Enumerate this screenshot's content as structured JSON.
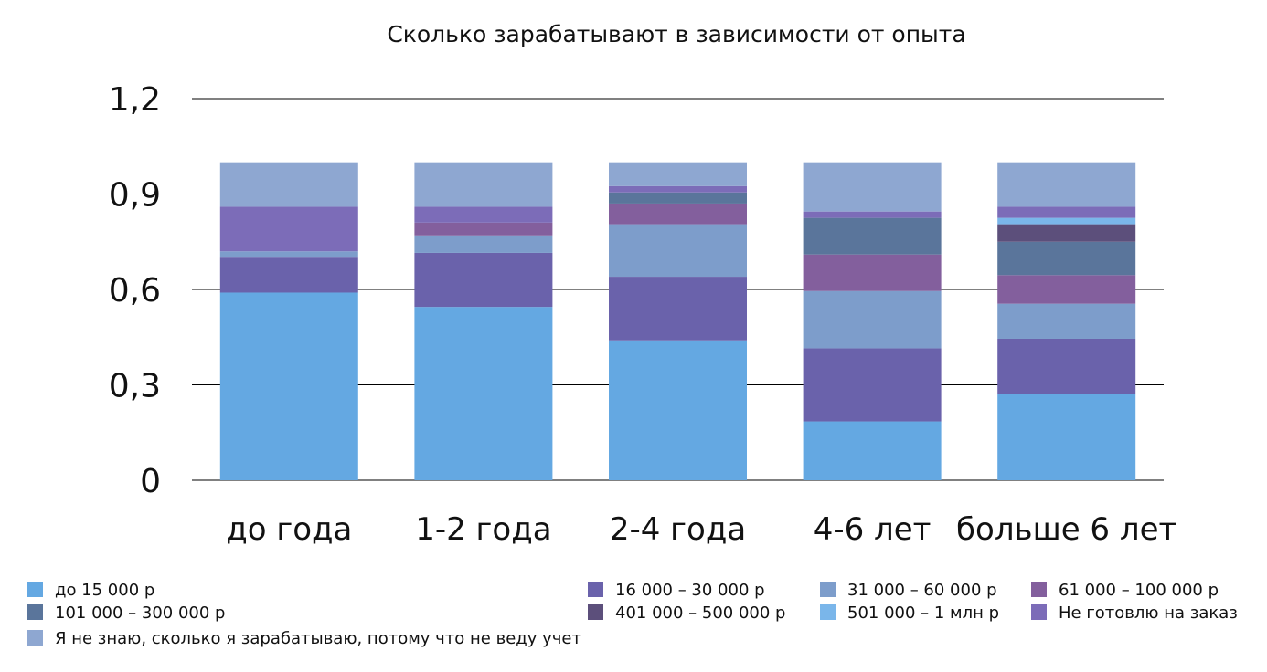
{
  "chart_data": {
    "type": "bar",
    "stacked": true,
    "title": "Сколько зарабатывают в зависимости от опыта",
    "xlabel": "",
    "ylabel": "",
    "ylim": [
      0,
      1.2
    ],
    "yticks": [
      "0",
      "0,3",
      "0,6",
      "0,9",
      "1,2"
    ],
    "ytick_values": [
      0,
      0.3,
      0.6,
      0.9,
      1.2
    ],
    "grid": true,
    "legend_position": "bottom",
    "categories": [
      "до года",
      "1-2 года",
      "2-4 года",
      "4-6 лет",
      "больше 6 лет"
    ],
    "series": [
      {
        "name": "до 15 000 р",
        "color": "#64a8e2",
        "values": [
          0.59,
          0.545,
          0.44,
          0.185,
          0.27
        ]
      },
      {
        "name": "16 000 – 30 000 р",
        "color": "#6a62ab",
        "values": [
          0.11,
          0.17,
          0.2,
          0.23,
          0.175
        ]
      },
      {
        "name": "31 000 – 60 000 р",
        "color": "#7d9dcb",
        "values": [
          0.02,
          0.055,
          0.165,
          0.18,
          0.11
        ]
      },
      {
        "name": "61 000 – 100 000 р",
        "color": "#835f9d",
        "values": [
          0.0,
          0.04,
          0.065,
          0.115,
          0.09
        ]
      },
      {
        "name": "101 000 – 300 000 р",
        "color": "#5a759b",
        "values": [
          0.0,
          0.0,
          0.035,
          0.115,
          0.105
        ]
      },
      {
        "name": "401 000 – 500 000 р",
        "color": "#5c4f7b",
        "values": [
          0.0,
          0.0,
          0.0,
          0.0,
          0.055
        ]
      },
      {
        "name": "501 000 – 1 млн р",
        "color": "#7ab6ea",
        "values": [
          0.0,
          0.0,
          0.0,
          0.0,
          0.02
        ]
      },
      {
        "name": "Не готовлю на заказ",
        "color": "#7c6cb8",
        "values": [
          0.14,
          0.05,
          0.02,
          0.02,
          0.035
        ]
      },
      {
        "name": "Я не знаю, сколько я зарабатываю, потому что не веду учет",
        "color": "#8ea7d1",
        "values": [
          0.14,
          0.14,
          0.075,
          0.155,
          0.14
        ]
      }
    ],
    "legend_order": [
      "до 15 000 р",
      "16 000 – 30 000 р",
      "31 000 – 60 000 р",
      "61 000 – 100 000 р",
      "101 000 – 300 000 р",
      "401 000 – 500 000 р",
      "501 000 – 1 млн р",
      "Не готовлю на заказ",
      "Я не знаю, сколько я зарабатываю, потому что не веду учет"
    ]
  }
}
